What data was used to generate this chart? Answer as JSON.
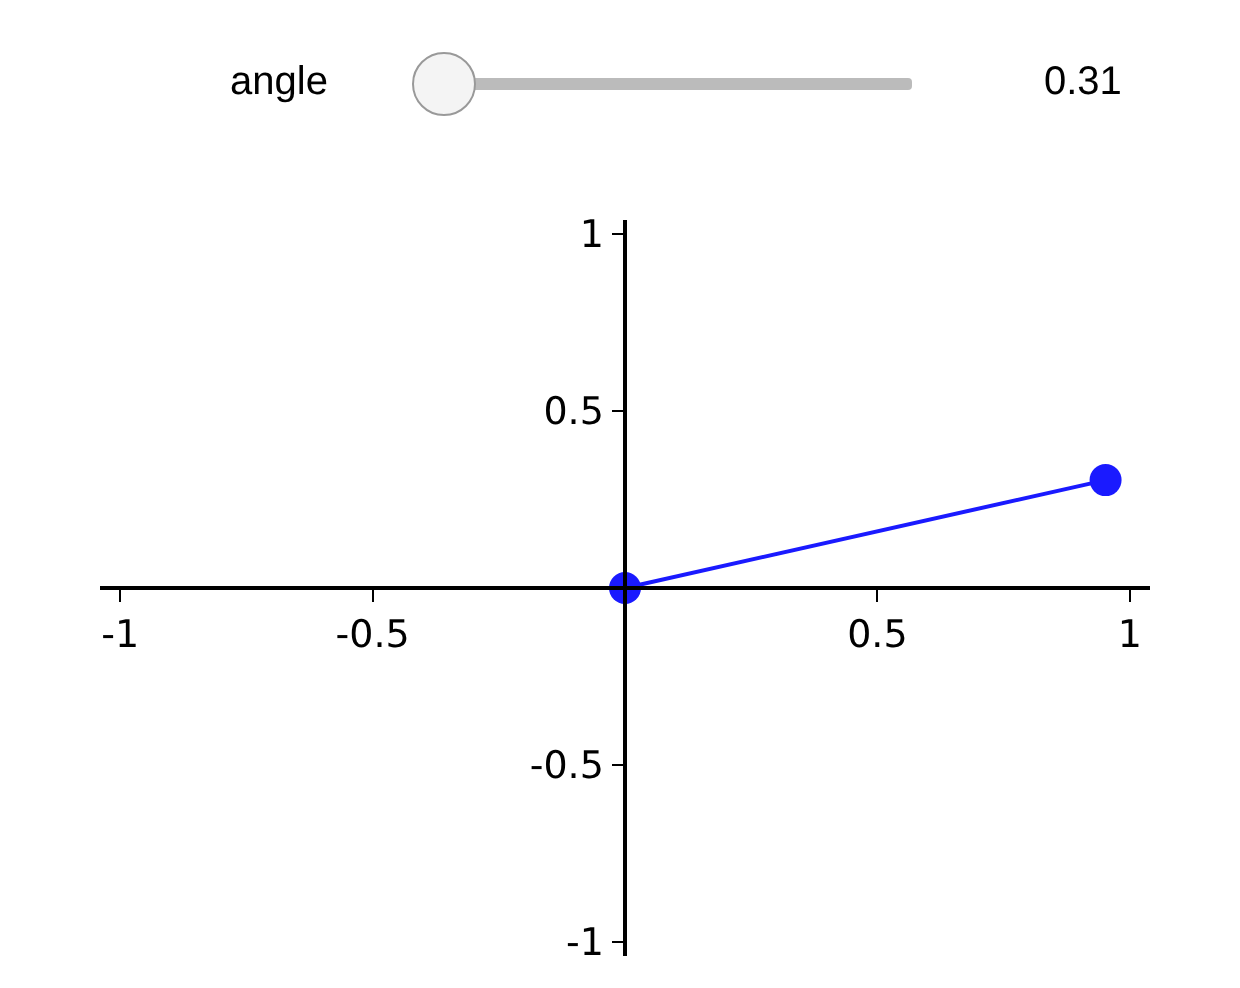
{
  "chart_data": {
    "type": "line",
    "annotations": [
      "angle",
      "0.31"
    ],
    "x": [
      0,
      0.952
    ],
    "series": [
      {
        "color": "#1a1aff",
        "values": [
          0,
          0.305
        ]
      }
    ],
    "marker": "circle",
    "line_style": "solid",
    "xlim": [
      -1.04,
      1.04
    ],
    "ylim": [
      -1.04,
      1.04
    ],
    "xticks": [
      -1,
      -0.5,
      0.5,
      1
    ],
    "yticks": [
      -1,
      -0.5,
      0.5,
      1
    ],
    "grid": false,
    "legend": false
  }
}
